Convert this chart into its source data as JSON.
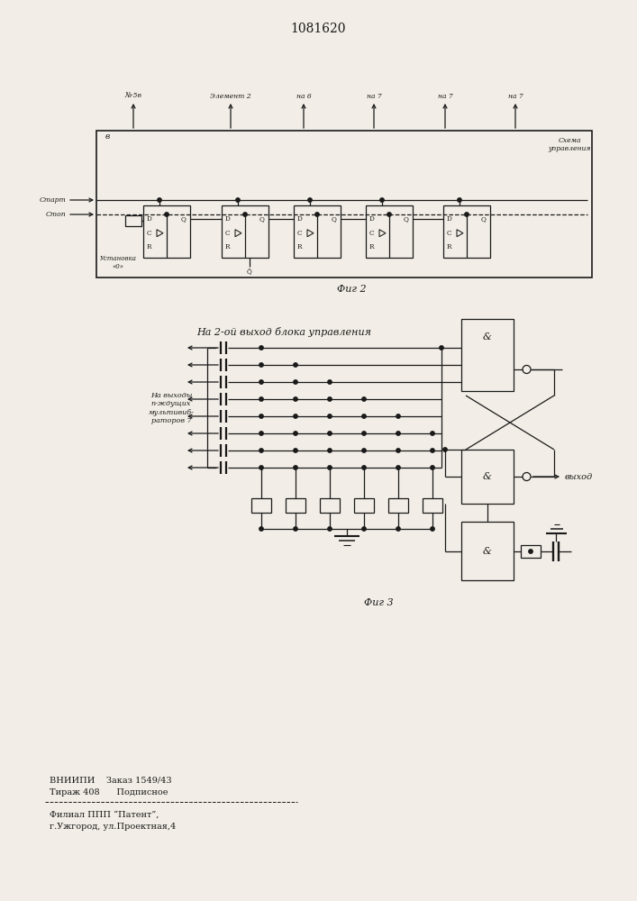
{
  "title": "1081620",
  "fig2_label": "Фиг 2",
  "fig3_label": "Фиг 3",
  "fig2_corner": "Схема\nуправления",
  "fig2_v": "в",
  "fig2_top_labels": [
    "№·5в",
    "Элемент 2",
    "на 6",
    "на 7",
    "на 7",
    "на 7"
  ],
  "start_label": "Старт",
  "stop_label": "Стоп",
  "reset_label": "Установка\n«0»",
  "fig3_top": "На 2-ой выход блока управления",
  "fig3_left": "На выходы\nп-ждущих\nмультивиб-\nраторов 7",
  "fig3_output": "выход",
  "b1": "&",
  "b2": "&",
  "b3": "&",
  "vn1": "ВНИИПИ    Заказ 1549/43",
  "vn2": "Тираж 408      Подписное",
  "fi1": "Филиал ППП “Патент”,",
  "fi2": "г.Ужгород, ул.Проектная,4",
  "bg": "#f2ede6",
  "lc": "#1a1a1a"
}
